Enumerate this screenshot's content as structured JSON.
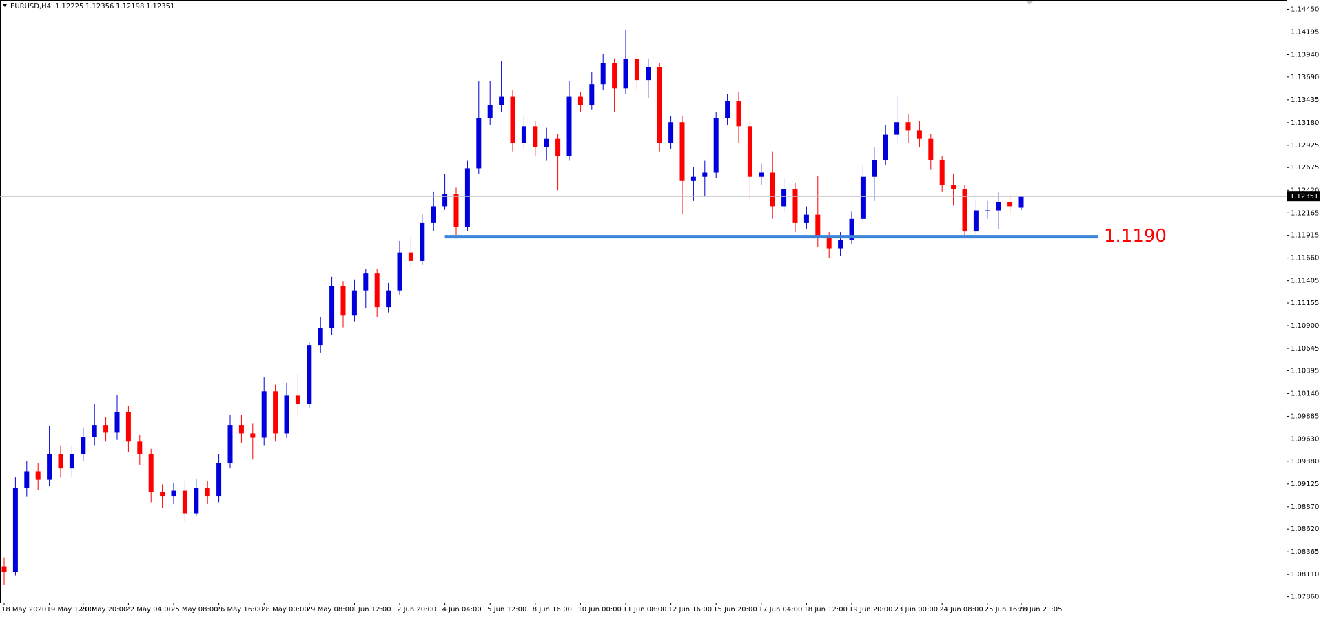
{
  "chart_data": {
    "type": "candlestick",
    "symbol": "EURUSD,H4",
    "categories": [
      "18 May 2020",
      null,
      null,
      null,
      "19 May 12:00",
      null,
      null,
      "20 May 20:00",
      null,
      null,
      null,
      "22 May 04:00",
      null,
      null,
      null,
      "25 May 08:00",
      null,
      null,
      null,
      "26 May 16:00",
      null,
      null,
      null,
      "28 May 00:00",
      null,
      null,
      null,
      "29 May 08:00",
      null,
      null,
      null,
      "1 Jun 12:00",
      null,
      null,
      null,
      "2 Jun 20:00",
      null,
      null,
      null,
      "4 Jun 04:00",
      null,
      null,
      null,
      "5 Jun 12:00",
      null,
      null,
      null,
      "8 Jun 16:00",
      null,
      null,
      null,
      "10 Jun 00:00",
      null,
      null,
      null,
      "11 Jun 08:00",
      null,
      null,
      null,
      "12 Jun 16:00",
      null,
      null,
      null,
      "15 Jun 20:00",
      null,
      null,
      null,
      "17 Jun 04:00",
      null,
      null,
      null,
      "18 Jun 12:00",
      null,
      null,
      null,
      "19 Jun 20:00",
      null,
      null,
      null,
      "23 Jun 00:00",
      null,
      null,
      null,
      "24 Jun 08:00",
      null,
      null,
      null,
      "25 Jun 16:00",
      null,
      null,
      "28 Jun 21:05"
    ],
    "open": [
      1.082,
      1.08135,
      1.0908,
      1.09267,
      1.09173,
      1.09456,
      1.093,
      1.09456,
      1.0965,
      1.09787,
      1.097,
      1.09928,
      1.096,
      1.09456,
      1.09031,
      1.08984,
      1.0905,
      1.08795,
      1.09079,
      1.08984,
      1.09362,
      1.09787,
      1.09692,
      1.09645,
      1.10164,
      1.09692,
      1.10117,
      1.10023,
      1.10683,
      1.10872,
      1.11344,
      1.11014,
      1.11297,
      1.11486,
      1.11108,
      1.11297,
      1.11722,
      1.11627,
      1.12052,
      1.12241,
      1.12383,
      1.12005,
      1.12666,
      1.13232,
      1.13374,
      1.13468,
      1.12949,
      1.13138,
      1.12902,
      1.12996,
      1.12807,
      1.13468,
      1.13374,
      1.1361,
      1.13846,
      1.13563,
      1.13893,
      1.13657,
      1.13799,
      1.12949,
      1.13185,
      1.12524,
      1.12571,
      1.12619,
      1.13232,
      1.13421,
      1.13138,
      1.12571,
      1.12619,
      1.12241,
      1.1243,
      1.12052,
      1.12147,
      1.11911,
      1.11769,
      1.11863,
      1.12099,
      1.12571,
      1.1276,
      1.13043,
      1.13185,
      1.13091,
      1.12996,
      1.1276,
      1.12477,
      1.1243,
      1.11958,
      1.12194,
      1.12194,
      1.12288,
      1.12225
    ],
    "high": [
      1.083,
      1.092,
      1.0938,
      1.0936,
      1.0978,
      1.0956,
      1.0956,
      1.0976,
      1.1002,
      1.0988,
      1.1012,
      1.1,
      1.0968,
      1.0952,
      1.0912,
      1.0914,
      1.0916,
      1.0918,
      1.0916,
      1.0946,
      1.099,
      1.099,
      1.098,
      1.1032,
      1.1024,
      1.1026,
      1.1036,
      1.1072,
      1.11,
      1.1145,
      1.114,
      1.1142,
      1.1154,
      1.1154,
      1.1138,
      1.1185,
      1.119,
      1.1215,
      1.124,
      1.126,
      1.1245,
      1.1275,
      1.1365,
      1.1365,
      1.1387,
      1.1355,
      1.1325,
      1.132,
      1.1312,
      1.1305,
      1.1365,
      1.1352,
      1.1375,
      1.1395,
      1.139,
      1.1422,
      1.1395,
      1.139,
      1.1385,
      1.1325,
      1.1325,
      1.1268,
      1.1275,
      1.133,
      1.135,
      1.1352,
      1.132,
      1.1272,
      1.1285,
      1.1255,
      1.125,
      1.1224,
      1.1258,
      1.1195,
      1.1195,
      1.1218,
      1.127,
      1.129,
      1.1315,
      1.1348,
      1.1328,
      1.132,
      1.1305,
      1.128,
      1.126,
      1.1248,
      1.1232,
      1.123,
      1.124,
      1.1238,
      1.12356
    ],
    "low": [
      1.0799,
      1.081,
      1.0898,
      1.0906,
      1.091,
      1.092,
      1.092,
      1.0938,
      1.0956,
      1.096,
      1.0962,
      1.0948,
      1.0934,
      1.0892,
      1.0886,
      1.089,
      1.087,
      1.0876,
      1.089,
      1.0892,
      1.093,
      1.0958,
      1.094,
      1.0956,
      1.096,
      1.0964,
      1.099,
      1.0998,
      1.106,
      1.108,
      1.1088,
      1.1095,
      1.111,
      1.11,
      1.1105,
      1.1125,
      1.1155,
      1.1158,
      1.1196,
      1.122,
      1.1192,
      1.1196,
      1.126,
      1.1315,
      1.133,
      1.1285,
      1.1288,
      1.128,
      1.1275,
      1.1242,
      1.1275,
      1.133,
      1.1332,
      1.1355,
      1.133,
      1.135,
      1.1355,
      1.1345,
      1.1285,
      1.1288,
      1.1215,
      1.123,
      1.1235,
      1.1256,
      1.1315,
      1.1295,
      1.123,
      1.1248,
      1.121,
      1.1218,
      1.1195,
      1.1199,
      1.1178,
      1.1166,
      1.1168,
      1.1182,
      1.1205,
      1.123,
      1.127,
      1.1295,
      1.1295,
      1.129,
      1.1265,
      1.124,
      1.1225,
      1.119,
      1.1193,
      1.121,
      1.1198,
      1.1215,
      1.12198
    ],
    "close": [
      1.08135,
      1.0908,
      1.09267,
      1.09173,
      1.09456,
      1.093,
      1.09456,
      1.0965,
      1.09787,
      1.097,
      1.09928,
      1.096,
      1.09456,
      1.09031,
      1.08984,
      1.0905,
      1.08795,
      1.09079,
      1.08984,
      1.09362,
      1.09787,
      1.09692,
      1.09645,
      1.10164,
      1.09692,
      1.10117,
      1.10023,
      1.10683,
      1.10872,
      1.11344,
      1.11014,
      1.11297,
      1.11486,
      1.11108,
      1.11297,
      1.11722,
      1.11627,
      1.12052,
      1.12241,
      1.12383,
      1.12005,
      1.12666,
      1.13232,
      1.13374,
      1.13468,
      1.12949,
      1.13138,
      1.12902,
      1.12996,
      1.12807,
      1.13468,
      1.13374,
      1.1361,
      1.13846,
      1.13563,
      1.13893,
      1.13657,
      1.13799,
      1.12949,
      1.13185,
      1.12524,
      1.12571,
      1.12619,
      1.13232,
      1.13421,
      1.13138,
      1.12571,
      1.12619,
      1.12241,
      1.1243,
      1.12052,
      1.12147,
      1.11911,
      1.11769,
      1.11863,
      1.12099,
      1.12571,
      1.1276,
      1.13043,
      1.13185,
      1.13091,
      1.12996,
      1.1276,
      1.12477,
      1.1243,
      1.11958,
      1.12194,
      1.12194,
      1.12288,
      1.12241,
      1.12351
    ],
    "up_color": "#0000dd",
    "down_color": "#ff0000",
    "ylim": [
      1.07795,
      1.14554
    ],
    "yticks": [
      {
        "value": 1.1445,
        "label": "1.14450"
      },
      {
        "value": 1.14195,
        "label": "1.14195"
      },
      {
        "value": 1.1394,
        "label": "1.13940"
      },
      {
        "value": 1.1369,
        "label": "1.13690"
      },
      {
        "value": 1.13435,
        "label": "1.13435"
      },
      {
        "value": 1.1318,
        "label": "1.13180"
      },
      {
        "value": 1.12925,
        "label": "1.12925"
      },
      {
        "value": 1.12675,
        "label": "1.12675"
      },
      {
        "value": 1.1242,
        "label": "1.12420"
      },
      {
        "value": 1.12165,
        "label": "1.12165"
      },
      {
        "value": 1.11915,
        "label": "1.11915"
      },
      {
        "value": 1.1166,
        "label": "1.11660"
      },
      {
        "value": 1.11405,
        "label": "1.11405"
      },
      {
        "value": 1.11155,
        "label": "1.11155"
      },
      {
        "value": 1.109,
        "label": "1.10900"
      },
      {
        "value": 1.10645,
        "label": "1.10645"
      },
      {
        "value": 1.10395,
        "label": "1.10395"
      },
      {
        "value": 1.1014,
        "label": "1.10140"
      },
      {
        "value": 1.09885,
        "label": "1.09885"
      },
      {
        "value": 1.0963,
        "label": "1.09630"
      },
      {
        "value": 1.0938,
        "label": "1.09380"
      },
      {
        "value": 1.09125,
        "label": "1.09125"
      },
      {
        "value": 1.0887,
        "label": "1.08870"
      },
      {
        "value": 1.0862,
        "label": "1.08620"
      },
      {
        "value": 1.08365,
        "label": "1.08365"
      },
      {
        "value": 1.0811,
        "label": "1.08110"
      },
      {
        "value": 1.0786,
        "label": "1.07860"
      }
    ],
    "hline": {
      "value": 1.119,
      "label": "1.1190",
      "color": "#3d85d8",
      "label_color": "#ff0000"
    }
  }
}
